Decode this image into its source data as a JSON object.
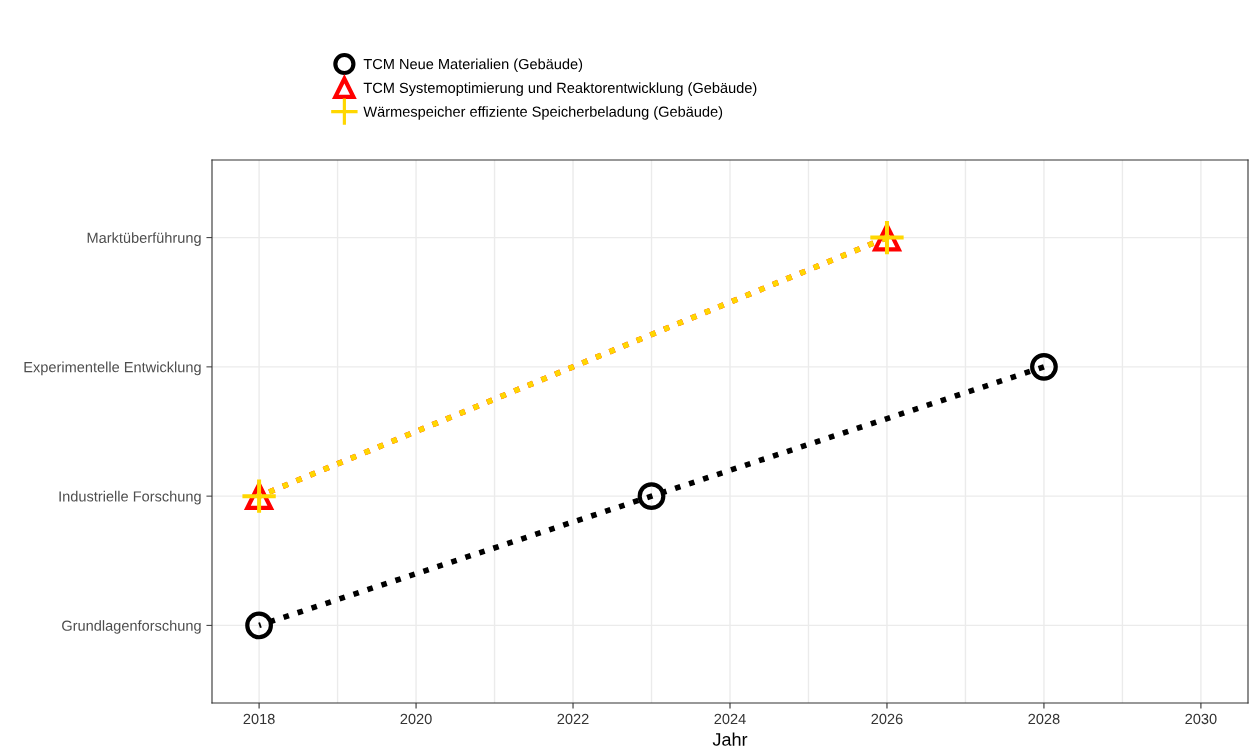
{
  "chart_data": {
    "type": "line",
    "orientation": "horizontal",
    "xlabel": "Jahr",
    "categories": [
      "Marktüberführung",
      "Experimentelle Entwicklung",
      "Industrielle Forschung",
      "Grundlagenforschung"
    ],
    "series": [
      {
        "name": "TCM Neue Materialien (Gebäude)",
        "color": "#000000",
        "marker": "circle",
        "line_style": "dotted",
        "values": [
          null,
          2028,
          2023,
          2018
        ]
      },
      {
        "name": "TCM Systemoptimierung und Reaktorentwicklung (Gebäude)",
        "color": "#ff0000",
        "marker": "triangle",
        "line_style": "dotted",
        "values": [
          2026,
          null,
          2018,
          null
        ]
      },
      {
        "name": "Wärmespeicher effiziente Speicherbeladung (Gebäude)",
        "color": "#ffd700",
        "marker": "cross",
        "line_style": "dotted",
        "values": [
          2026,
          null,
          2018,
          null
        ]
      }
    ],
    "xlim": [
      2017.4,
      2030.6
    ],
    "xticks": [
      2018,
      2020,
      2022,
      2024,
      2026,
      2028,
      2030
    ],
    "grid": true,
    "legend": "top"
  }
}
